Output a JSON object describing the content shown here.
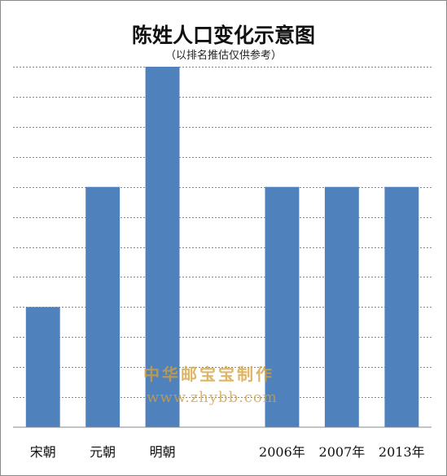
{
  "chart_data": {
    "type": "bar",
    "title": "陈姓人口变化示意图",
    "subtitle": "（以排名推估仅供参考）",
    "categories": [
      "宋朝",
      "元朝",
      "明朝",
      "",
      "2006年",
      "2007年",
      "2013年"
    ],
    "values": [
      2,
      4,
      6,
      null,
      4,
      4,
      4
    ],
    "ylim": [
      0,
      6
    ],
    "ygrid_step": 0.5,
    "grid": true,
    "ytick_labels_visible": false,
    "bar_color": "#4f81bd",
    "grid_color": "#888888"
  },
  "watermark": {
    "line1": "中华邮宝宝制作",
    "line2": "www.zhybb.com"
  }
}
